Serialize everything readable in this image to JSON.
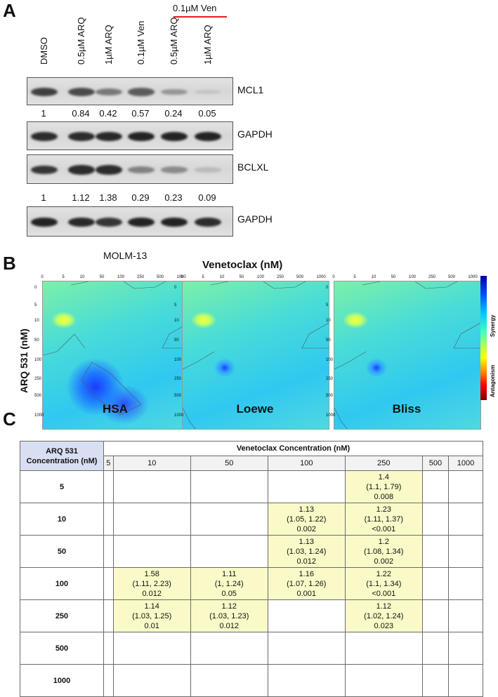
{
  "panel_a": {
    "letter": "A",
    "ven_group_label": "0.1µM Ven",
    "lanes": [
      "DMSO",
      "0.5µM ARQ",
      "1µM ARQ",
      "0.1µM Ven",
      "0.5µM ARQ",
      "1µM ARQ"
    ],
    "blots": [
      {
        "label": "MCL1",
        "band_intensity": [
          0.8,
          0.75,
          0.5,
          0.65,
          0.35,
          0.1
        ]
      },
      {
        "label": "GAPDH",
        "band_intensity": [
          0.9,
          0.9,
          0.92,
          0.95,
          0.95,
          0.95
        ]
      },
      {
        "label": "BCLXL",
        "band_intensity": [
          0.85,
          0.9,
          0.9,
          0.45,
          0.4,
          0.15
        ]
      },
      {
        "label": "GAPDH",
        "band_intensity": [
          0.95,
          0.92,
          0.85,
          0.95,
          0.95,
          0.9
        ]
      }
    ],
    "mcl1_quant": [
      "1",
      "0.84",
      "0.42",
      "0.57",
      "0.24",
      "0.05"
    ],
    "bclxl_quant": [
      "1",
      "1.12",
      "1.38",
      "0.29",
      "0.23",
      "0.09"
    ],
    "cell_line": "MOLM-13"
  },
  "panel_b": {
    "letter": "B",
    "x_title": "Venetoclax (nM)",
    "y_title": "ARQ 531 (nM)",
    "x_ticks": [
      "0",
      "5",
      "10",
      "50",
      "100",
      "250",
      "500",
      "1000"
    ],
    "y_ticks": [
      "0",
      "5",
      "10",
      "50",
      "100",
      "250",
      "500",
      "1000"
    ],
    "methods": [
      "HSA",
      "Loewe",
      "Bliss"
    ],
    "colorbar_top": "Synergy",
    "colorbar_bottom": "Antagonism",
    "colors": {
      "synergy": "#0000a0",
      "neutral": "#40ffc0",
      "antagonism": "#ff0000"
    }
  },
  "panel_c": {
    "letter": "C",
    "corner_label_1": "ARQ 531",
    "corner_label_2": "Concentration (nM)",
    "col_title": "Venetoclax Concentration (nM)",
    "cols": [
      "5",
      "10",
      "50",
      "100",
      "250",
      "500",
      "1000"
    ],
    "rows": [
      {
        "label": "5",
        "cells": [
          [],
          [],
          [],
          [],
          [
            "1.4",
            "(1.1, 1.79)",
            "0.008"
          ],
          [],
          []
        ]
      },
      {
        "label": "10",
        "cells": [
          [],
          [],
          [],
          [
            "1.13",
            "(1.05, 1.22)",
            "0.002"
          ],
          [
            "1.23",
            "(1.11, 1.37)",
            "<0.001"
          ],
          [],
          []
        ]
      },
      {
        "label": "50",
        "cells": [
          [],
          [],
          [],
          [
            "1.13",
            "(1.03, 1.24)",
            "0.012"
          ],
          [
            "1.2",
            "(1.08, 1.34)",
            "0.002"
          ],
          [],
          []
        ]
      },
      {
        "label": "100",
        "cells": [
          [],
          [
            "1.58",
            "(1.11, 2.23)",
            "0.012"
          ],
          [
            "1.11",
            "(1, 1.24)",
            "0.05"
          ],
          [
            "1.16",
            "(1.07, 1.26)",
            "0.001"
          ],
          [
            "1.22",
            "(1.1, 1.34)",
            "<0.001"
          ],
          [],
          []
        ]
      },
      {
        "label": "250",
        "cells": [
          [],
          [
            "1.14",
            "(1.03, 1.25)",
            "0.01"
          ],
          [
            "1.12",
            "(1.03, 1.23)",
            "0.012"
          ],
          [],
          [
            "1.12",
            "(1.02, 1.24)",
            "0.023"
          ],
          [],
          []
        ]
      },
      {
        "label": "500",
        "cells": [
          [],
          [],
          [],
          [],
          [],
          [],
          []
        ]
      },
      {
        "label": "1000",
        "cells": [
          [],
          [],
          [],
          [],
          [],
          [],
          []
        ]
      }
    ],
    "highlight_color": "#fafac8"
  }
}
